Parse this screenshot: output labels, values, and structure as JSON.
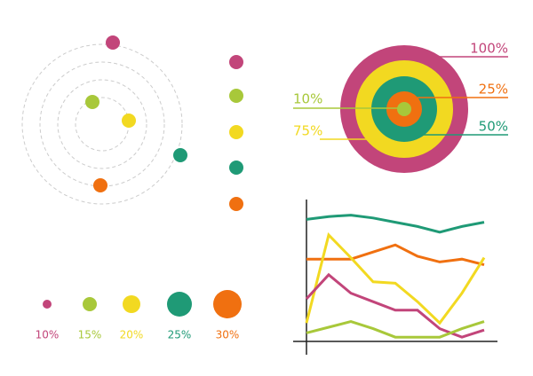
{
  "orbit": {
    "dots": [
      {
        "color": "#c2457a"
      },
      {
        "color": "#a8c83a"
      },
      {
        "color": "#f2d921"
      },
      {
        "color": "#1f9a76"
      },
      {
        "color": "#f07010"
      }
    ]
  },
  "legend_dots": [
    {
      "color": "#c2457a"
    },
    {
      "color": "#a8c83a"
    },
    {
      "color": "#f2d921"
    },
    {
      "color": "#1f9a76"
    },
    {
      "color": "#f07010"
    }
  ],
  "target": {
    "rings": [
      {
        "label": "100%",
        "color": "#c2457a"
      },
      {
        "label": "75%",
        "color": "#f2d921"
      },
      {
        "label": "50%",
        "color": "#1f9a76"
      },
      {
        "label": "25%",
        "color": "#f07010"
      },
      {
        "label": "10%",
        "color": "#a8c83a"
      }
    ]
  },
  "bubbles": [
    {
      "label": "10%",
      "color": "#c2457a"
    },
    {
      "label": "15%",
      "color": "#a8c83a"
    },
    {
      "label": "20%",
      "color": "#f2d921"
    },
    {
      "label": "25%",
      "color": "#1f9a76"
    },
    {
      "label": "30%",
      "color": "#f07010"
    }
  ],
  "line_chart": {
    "type": "line",
    "x": [
      0,
      1,
      2,
      3,
      4,
      5,
      6,
      7,
      8
    ],
    "xlim": [
      0,
      8
    ],
    "ylim": [
      0,
      100
    ],
    "series": [
      {
        "color": "#1f9a76",
        "values": [
          86,
          88,
          89,
          87,
          84,
          81,
          77,
          81,
          84
        ]
      },
      {
        "color": "#f07010",
        "values": [
          58,
          58,
          58,
          63,
          68,
          60,
          56,
          58,
          54
        ]
      },
      {
        "color": "#f2d921",
        "values": [
          13,
          75,
          59,
          42,
          41,
          28,
          13,
          34,
          59
        ]
      },
      {
        "color": "#c2457a",
        "values": [
          30,
          47,
          34,
          28,
          22,
          22,
          9,
          3,
          8
        ]
      },
      {
        "color": "#a8c83a",
        "values": [
          6,
          10,
          14,
          9,
          3,
          3,
          3,
          9,
          14
        ]
      }
    ]
  }
}
